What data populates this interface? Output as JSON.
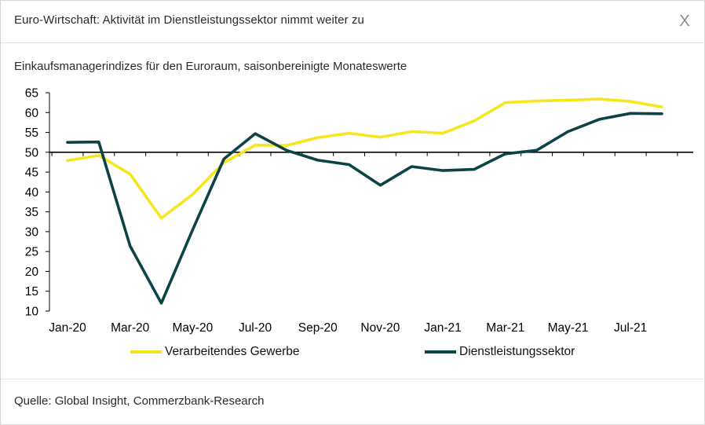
{
  "dialog": {
    "title": "Euro-Wirtschaft: Aktivität im Dienstleistungssektor nimmt weiter zu",
    "close_label": "X",
    "source": "Quelle: Global Insight, Commerzbank-Research"
  },
  "chart_data": {
    "type": "line",
    "title": "Einkaufsmanagerindizes für den Euroraum, saisonbereinigte Monateswerte",
    "xlabel": "",
    "ylabel": "",
    "ylim": [
      10,
      65
    ],
    "yticks": [
      65,
      60,
      55,
      50,
      45,
      40,
      35,
      30,
      25,
      20,
      15,
      10
    ],
    "reference_line": 50,
    "categories": [
      "Jan-20",
      "Feb-20",
      "Mar-20",
      "Apr-20",
      "May-20",
      "Jun-20",
      "Jul-20",
      "Aug-20",
      "Sep-20",
      "Oct-20",
      "Nov-20",
      "Dec-20",
      "Jan-21",
      "Feb-21",
      "Mar-21",
      "Apr-21",
      "May-21",
      "Jun-21",
      "Jul-21",
      "Aug-21"
    ],
    "tick_labels": [
      "Jan-20",
      "Mar-20",
      "May-20",
      "Jul-20",
      "Sep-20",
      "Nov-20",
      "Jan-21",
      "Mar-21",
      "May-21",
      "Jul-21"
    ],
    "legend_position": "bottom",
    "series": [
      {
        "name": "Verarbeitendes Gewerbe",
        "color": "#f5e620",
        "values": [
          47.9,
          49.2,
          44.5,
          33.4,
          39.4,
          47.4,
          51.8,
          51.7,
          53.7,
          54.8,
          53.8,
          55.2,
          54.8,
          57.9,
          62.5,
          62.9,
          63.1,
          63.4,
          62.8,
          61.4
        ]
      },
      {
        "name": "Dienstleistungssektor",
        "color": "#0b4346",
        "values": [
          52.5,
          52.6,
          26.4,
          12.0,
          30.5,
          48.3,
          54.7,
          50.5,
          48.0,
          46.9,
          41.7,
          46.4,
          45.4,
          45.7,
          49.6,
          50.5,
          55.2,
          58.3,
          59.8,
          59.7
        ]
      }
    ]
  }
}
